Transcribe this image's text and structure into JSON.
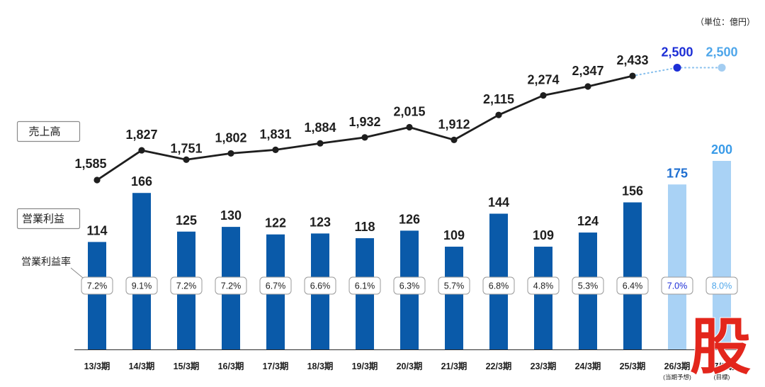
{
  "unit_note": "（単位：億円）",
  "watermark": {
    "text": "股"
  },
  "colors": {
    "text": "#1e1e1e",
    "line": "#1e1e1e",
    "projection_line": "#8cc2ee",
    "axis": "#2a2a2a",
    "watermark": "#e3261c"
  },
  "chart_data": {
    "type": "bar",
    "grid": false,
    "categories": [
      "13/3期",
      "14/3期",
      "15/3期",
      "16/3期",
      "17/3期",
      "18/3期",
      "19/3期",
      "20/3期",
      "21/3期",
      "22/3期",
      "23/3期",
      "24/3期",
      "25/3期",
      "26/3期",
      "27/3期"
    ],
    "category_notes": [
      "",
      "",
      "",
      "",
      "",
      "",
      "",
      "",
      "",
      "",
      "",
      "",
      "",
      "(当期予想)",
      "(目標)"
    ],
    "series": [
      {
        "name": "売上高",
        "type": "line",
        "values": [
          1585,
          1827,
          1751,
          1802,
          1831,
          1884,
          1932,
          2015,
          1912,
          2115,
          2274,
          2347,
          2433,
          2500,
          2500
        ],
        "labels": [
          "1,585",
          "1,827",
          "1,751",
          "1,802",
          "1,831",
          "1,884",
          "1,932",
          "2,015",
          "1,912",
          "2,115",
          "2,274",
          "2,347",
          "2,433",
          "2,500",
          "2,500"
        ],
        "point_colors": [
          "#1e1e1e",
          "#1e1e1e",
          "#1e1e1e",
          "#1e1e1e",
          "#1e1e1e",
          "#1e1e1e",
          "#1e1e1e",
          "#1e1e1e",
          "#1e1e1e",
          "#1e1e1e",
          "#1e1e1e",
          "#1e1e1e",
          "#1e1e1e",
          "#1c2ed6",
          "#a3cdf1"
        ],
        "label_colors": [
          "#1e1e1e",
          "#1e1e1e",
          "#1e1e1e",
          "#1e1e1e",
          "#1e1e1e",
          "#1e1e1e",
          "#1e1e1e",
          "#1e1e1e",
          "#1e1e1e",
          "#1e1e1e",
          "#1e1e1e",
          "#1e1e1e",
          "#1e1e1e",
          "#1c2ed6",
          "#4ea6ea"
        ],
        "segment_styles": [
          "solid",
          "solid",
          "solid",
          "solid",
          "solid",
          "solid",
          "solid",
          "solid",
          "solid",
          "solid",
          "solid",
          "solid",
          "dotted",
          "dotted"
        ]
      },
      {
        "name": "営業利益",
        "type": "bar",
        "values": [
          114,
          166,
          125,
          130,
          122,
          123,
          118,
          126,
          109,
          144,
          109,
          124,
          156,
          175,
          200
        ],
        "bar_colors": [
          "#0a5aa9",
          "#0a5aa9",
          "#0a5aa9",
          "#0a5aa9",
          "#0a5aa9",
          "#0a5aa9",
          "#0a5aa9",
          "#0a5aa9",
          "#0a5aa9",
          "#0a5aa9",
          "#0a5aa9",
          "#0a5aa9",
          "#0a5aa9",
          "#a9d2f5",
          "#a9d2f5"
        ],
        "label_colors": [
          "#1e1e1e",
          "#1e1e1e",
          "#1e1e1e",
          "#1e1e1e",
          "#1e1e1e",
          "#1e1e1e",
          "#1e1e1e",
          "#1e1e1e",
          "#1e1e1e",
          "#1e1e1e",
          "#1e1e1e",
          "#1e1e1e",
          "#1e1e1e",
          "#1f6fd1",
          "#3a9be8"
        ]
      },
      {
        "name": "営業利益率",
        "values": [
          7.2,
          9.1,
          7.2,
          7.2,
          6.7,
          6.6,
          6.1,
          6.3,
          5.7,
          6.8,
          4.8,
          5.3,
          6.4,
          7.0,
          8.0
        ],
        "labels": [
          "7.2%",
          "9.1%",
          "7.2%",
          "7.2%",
          "6.7%",
          "6.6%",
          "6.1%",
          "6.3%",
          "5.7%",
          "6.8%",
          "4.8%",
          "5.3%",
          "6.4%",
          "7.0%",
          "8.0%"
        ],
        "label_colors": [
          "#1e1e1e",
          "#1e1e1e",
          "#1e1e1e",
          "#1e1e1e",
          "#1e1e1e",
          "#1e1e1e",
          "#1e1e1e",
          "#1e1e1e",
          "#1e1e1e",
          "#1e1e1e",
          "#1e1e1e",
          "#1e1e1e",
          "#1e1e1e",
          "#1c2ed6",
          "#4ea6ea"
        ]
      }
    ]
  }
}
